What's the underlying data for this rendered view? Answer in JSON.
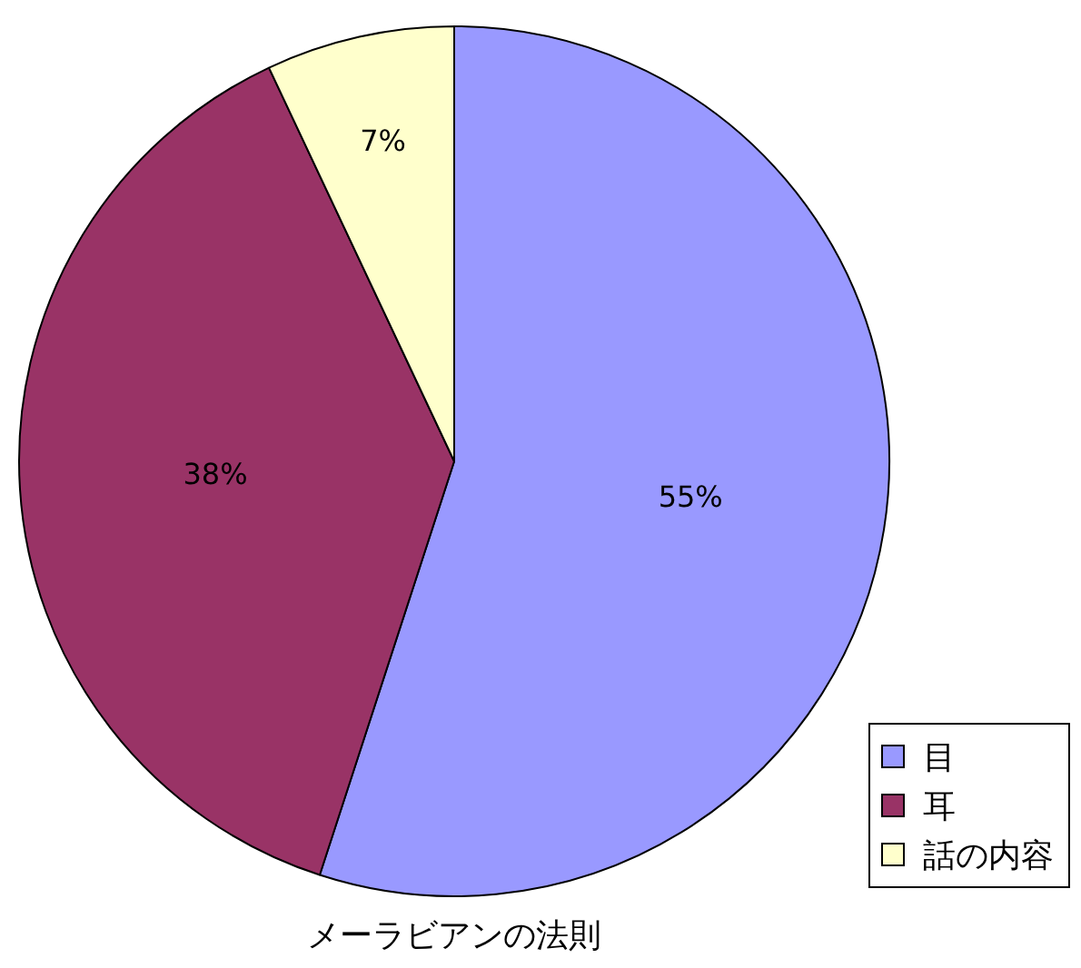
{
  "chart_data": {
    "type": "pie",
    "title": "メーラビアンの法則",
    "categories": [
      "目",
      "耳",
      "話の内容"
    ],
    "values": [
      55,
      38,
      7
    ],
    "colors": [
      "#9999ff",
      "#993366",
      "#ffffcc"
    ],
    "value_labels": [
      "55%",
      "38%",
      "7%"
    ],
    "legend": "bottom right"
  }
}
